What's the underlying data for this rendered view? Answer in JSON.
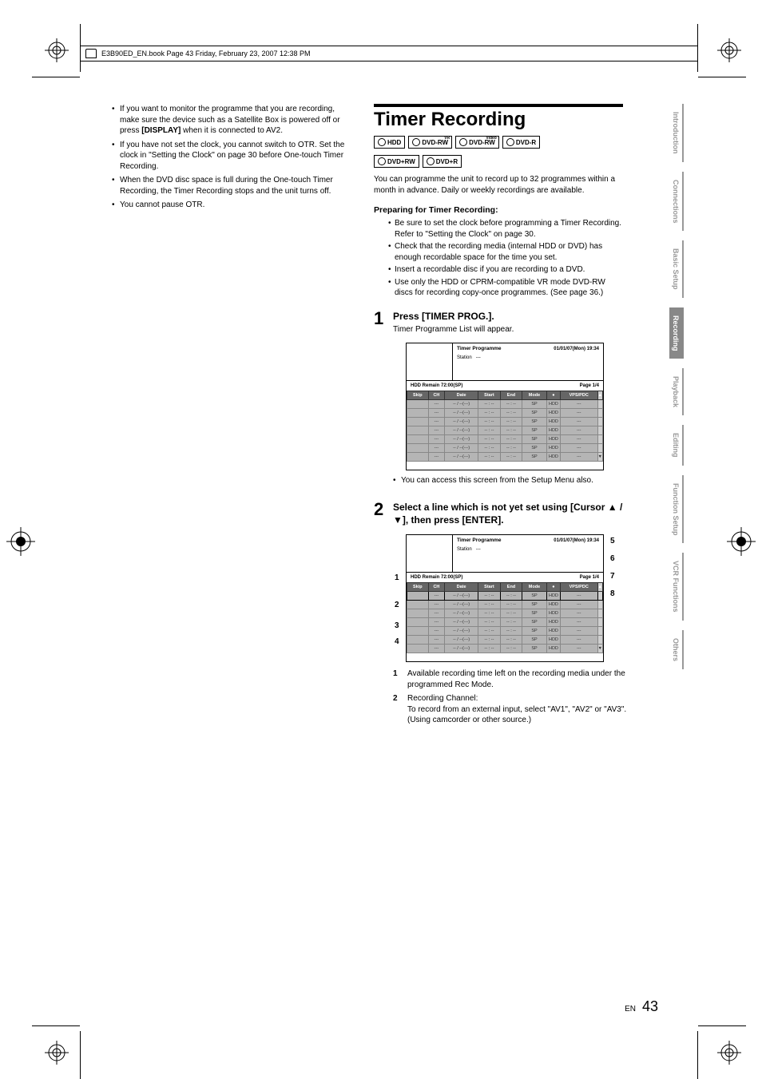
{
  "header": {
    "text": "E3B90ED_EN.book  Page 43  Friday, February 23, 2007  12:38 PM"
  },
  "left_column": {
    "bullets": [
      "If you want to monitor the programme that you are recording, make sure the device such as a Satellite Box is powered off or press <b>[DISPLAY]</b> when it is connected to AV2.",
      "If you have not set the clock, you cannot switch to OTR. Set the clock in \"Setting the Clock\" on page 30 before One-touch Timer Recording.",
      "When the DVD disc space is full during the One-touch Timer Recording, the Timer Recording stops and the unit turns off.",
      "You cannot pause OTR."
    ]
  },
  "right_column": {
    "title": "Timer Recording",
    "badges": [
      "HDD",
      "DVD-RW",
      "DVD-RW",
      "DVD-R",
      "DVD+RW",
      "DVD+R"
    ],
    "badge_sup": [
      "",
      "VR",
      "Video",
      "",
      "",
      ""
    ],
    "intro": "You can programme the unit to record up to 32 programmes within a month in advance. Daily or weekly recordings are available.",
    "prep_head": "Preparing for Timer Recording:",
    "prep_items": [
      "Be sure to set the clock before programming a Timer Recording. Refer to \"Setting the Clock\" on page 30.",
      "Check that the recording media (internal HDD or DVD) has enough recordable space for the time you set.",
      "Insert a recordable disc if you are recording to a DVD.",
      "Use only the HDD or CPRM-compatible VR mode DVD-RW discs for recording copy-once programmes. (See page 36.)"
    ],
    "step1": {
      "num": "1",
      "head": "Press [TIMER PROG.].",
      "body": "Timer Programme List will appear.",
      "note": "You can access this screen from the Setup Menu also."
    },
    "step2": {
      "num": "2",
      "head": "Select a line which is not yet set using [Cursor ▲ / ▼], then press [ENTER]."
    },
    "timer_screen": {
      "title": "Timer Programme",
      "datetime": "01/01/07(Mon) 19:34",
      "station_label": "Station",
      "station_value": "---",
      "remain": "HDD Remain   72:00(SP)",
      "page": "Page 1/4",
      "columns": [
        "Skip",
        "CH",
        "Date",
        "Start",
        "End",
        "Mode",
        "",
        "VPS/PDC"
      ],
      "row": {
        "skip": "",
        "ch": "---",
        "date": "-- / --(---)",
        "start": "-- : --",
        "end": "-- : --",
        "mode": "SP",
        "media": "HDD",
        "vps": "---"
      },
      "rec_icon": "●"
    },
    "legend": [
      {
        "n": "1",
        "t": "Available recording time left on the recording media under the programmed Rec Mode."
      },
      {
        "n": "2",
        "t": "Recording Channel:<br>To record from an external input, select \"AV1\", \"AV2\" or \"AV3\". (Using camcorder or other source.)"
      }
    ],
    "callouts_left": [
      "1",
      "2",
      "3",
      "4"
    ],
    "callouts_right": [
      "5",
      "6",
      "7",
      "8"
    ]
  },
  "side_tabs": [
    {
      "label": "Introduction",
      "active": false
    },
    {
      "label": "Connections",
      "active": false
    },
    {
      "label": "Basic Setup",
      "active": false
    },
    {
      "label": "Recording",
      "active": true
    },
    {
      "label": "Playback",
      "active": false
    },
    {
      "label": "Editing",
      "active": false
    },
    {
      "label": "Function Setup",
      "active": false
    },
    {
      "label": "VCR Functions",
      "active": false
    },
    {
      "label": "Others",
      "active": false
    }
  ],
  "footer": {
    "lang": "EN",
    "page": "43"
  },
  "colors": {
    "tab_inactive": "#999999",
    "tab_active_bg": "#888888",
    "table_header_bg": "#666666",
    "table_cell_bg": "#b5b5b5"
  }
}
